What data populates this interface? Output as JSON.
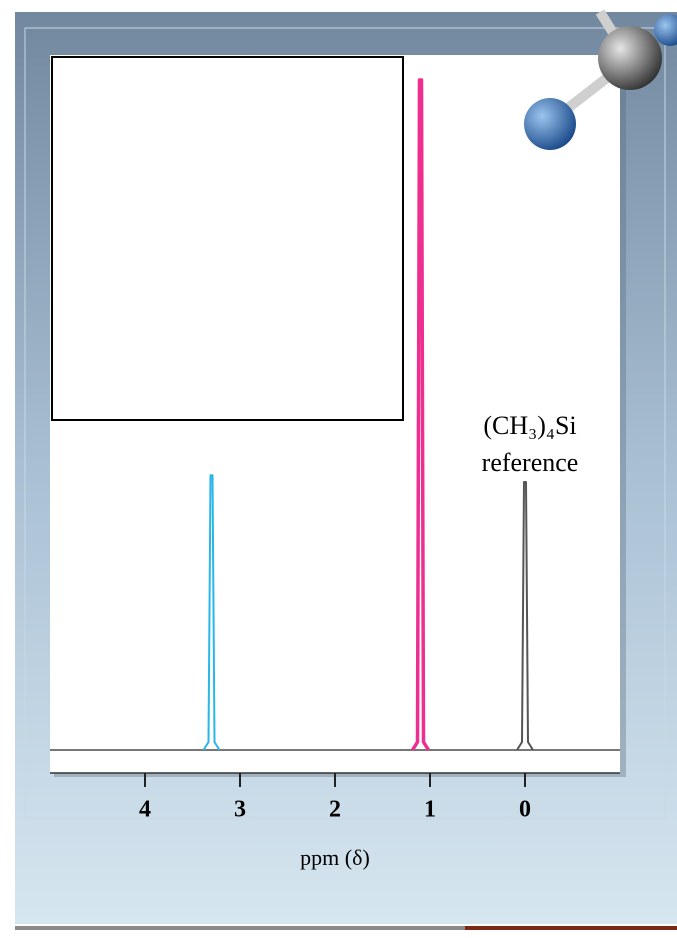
{
  "chart_data": {
    "type": "spectrum",
    "x": [
      3.3,
      1.1,
      0
    ],
    "values": [
      41,
      100,
      40
    ],
    "colors": [
      "#29b6e8",
      "#ef2f8f",
      "#555555"
    ],
    "xlim": [
      5,
      -1
    ],
    "ylim": [
      0,
      100
    ],
    "xticks": [
      4,
      3,
      2,
      1,
      0
    ],
    "xlabel": "ppm (δ)",
    "annotations": [
      "(CH₃)₄Si",
      "reference"
    ]
  }
}
